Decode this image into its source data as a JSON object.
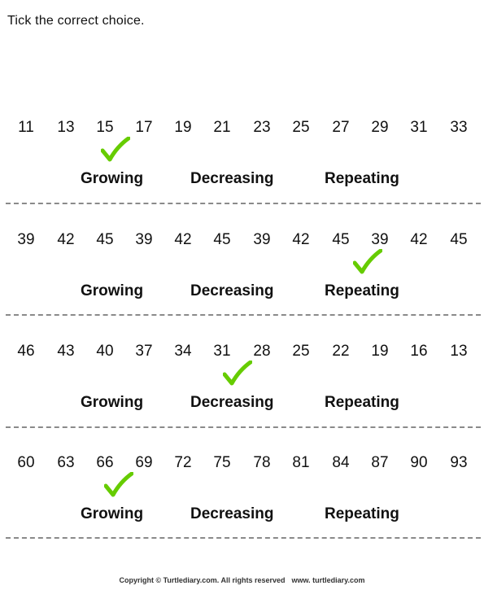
{
  "instruction": "Tick the correct choice.",
  "options": [
    "Growing",
    "Decreasing",
    "Repeating"
  ],
  "questions": [
    {
      "numbers": [
        "11",
        "13",
        "15",
        "17",
        "19",
        "21",
        "23",
        "25",
        "27",
        "29",
        "31",
        "33"
      ],
      "selected": "Growing"
    },
    {
      "numbers": [
        "39",
        "42",
        "45",
        "39",
        "42",
        "45",
        "39",
        "42",
        "45",
        "39",
        "42",
        "45"
      ],
      "selected": "Repeating"
    },
    {
      "numbers": [
        "46",
        "43",
        "40",
        "37",
        "34",
        "31",
        "28",
        "25",
        "22",
        "19",
        "16",
        "13"
      ],
      "selected": "Decreasing"
    },
    {
      "numbers": [
        "60",
        "63",
        "66",
        "69",
        "72",
        "75",
        "78",
        "81",
        "84",
        "87",
        "90",
        "93"
      ],
      "selected": "Growing"
    }
  ],
  "tick_color": "#66cc00",
  "footer": {
    "copyright": "Copyright © Turtlediary.com. All rights reserved",
    "website": "www. turtlediary.com"
  }
}
